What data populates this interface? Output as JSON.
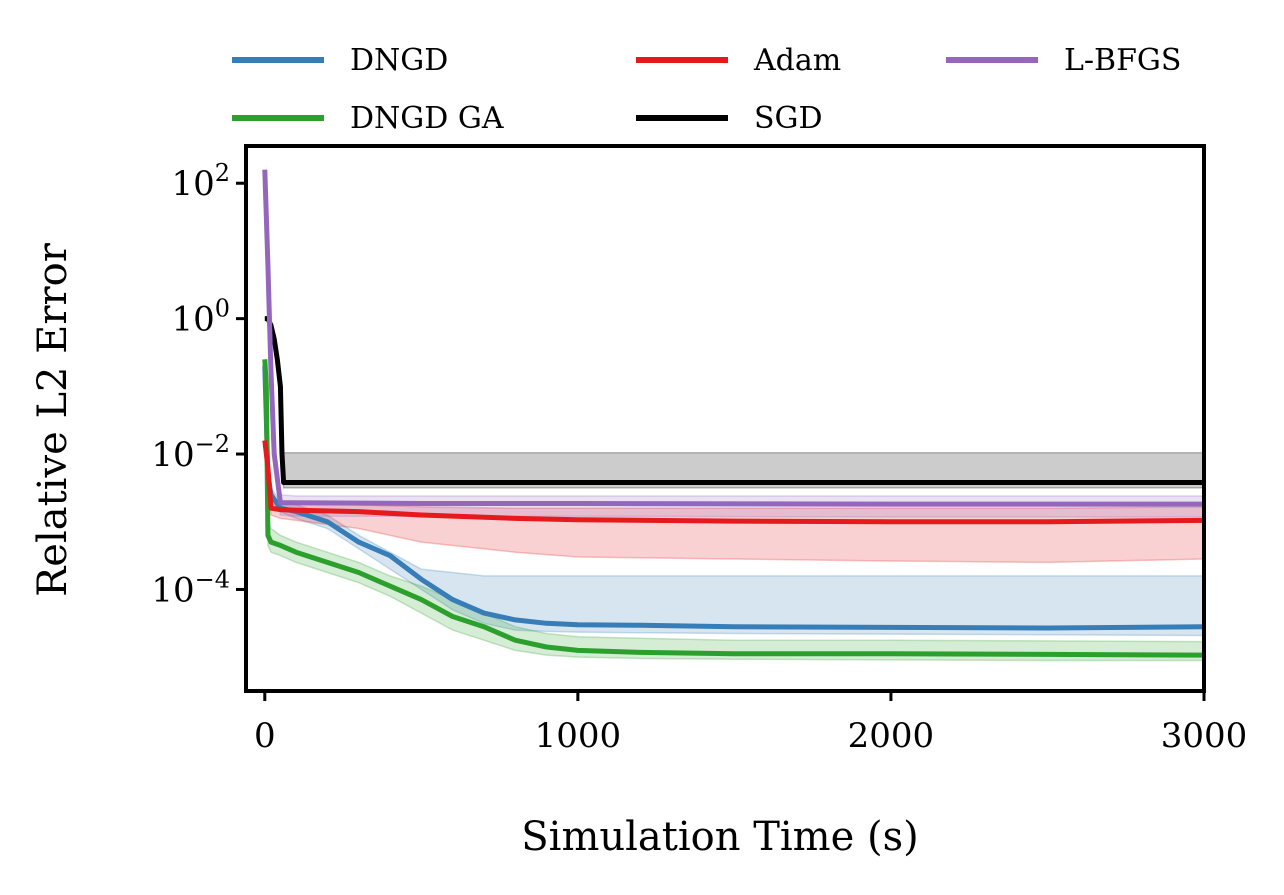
{
  "chart_data": {
    "type": "line",
    "xlabel": "Simulation Time (s)",
    "ylabel": "Relative L2 Error",
    "yscale": "log",
    "xlim": [
      -60,
      3000
    ],
    "ylim_log10": [
      -5.5,
      2.55
    ],
    "x_ticks": [
      {
        "value": 0,
        "label": "0"
      },
      {
        "value": 1000,
        "label": "1000"
      },
      {
        "value": 2000,
        "label": "2000"
      },
      {
        "value": 3000,
        "label": "3000"
      }
    ],
    "y_ticks": [
      {
        "log10": 2,
        "base": "10",
        "exp": "2"
      },
      {
        "log10": 0,
        "base": "10",
        "exp": "0"
      },
      {
        "log10": -2,
        "base": "10",
        "exp": "−2"
      },
      {
        "log10": -4,
        "base": "10",
        "exp": "−4"
      }
    ],
    "grid": false,
    "legend": {
      "placement": "top, above plot",
      "columns": 3
    },
    "series": [
      {
        "name": "DNGD",
        "color": "#377eb8",
        "x": [
          0,
          10,
          20,
          50,
          100,
          200,
          300,
          400,
          500,
          600,
          700,
          800,
          900,
          1000,
          1200,
          1500,
          2000,
          2500,
          3000
        ],
        "log10_y": [
          -0.7,
          -2.3,
          -2.6,
          -2.8,
          -2.85,
          -3.0,
          -3.3,
          -3.5,
          -3.85,
          -4.15,
          -4.35,
          -4.45,
          -4.5,
          -4.52,
          -4.53,
          -4.55,
          -4.56,
          -4.57,
          -4.55
        ],
        "band_upper": [
          -0.7,
          -2.2,
          -2.5,
          -2.7,
          -2.75,
          -2.9,
          -3.2,
          -3.45,
          -3.7,
          -3.75,
          -3.8,
          -3.8,
          -3.8,
          -3.8,
          -3.8,
          -3.8,
          -3.8,
          -3.8,
          -3.8
        ],
        "band_lower": [
          -0.7,
          -2.4,
          -2.7,
          -2.85,
          -2.95,
          -3.1,
          -3.4,
          -3.7,
          -4.0,
          -4.3,
          -4.5,
          -4.6,
          -4.62,
          -4.63,
          -4.64,
          -4.65,
          -4.66,
          -4.67,
          -4.68
        ]
      },
      {
        "name": "DNGD GA",
        "color": "#2ca02c",
        "x": [
          0,
          5,
          10,
          20,
          50,
          100,
          200,
          300,
          400,
          500,
          600,
          700,
          800,
          900,
          1000,
          1200,
          1500,
          2000,
          2500,
          3000
        ],
        "log10_y": [
          -0.6,
          -1.0,
          -3.2,
          -3.3,
          -3.35,
          -3.45,
          -3.6,
          -3.75,
          -3.95,
          -4.15,
          -4.4,
          -4.55,
          -4.75,
          -4.85,
          -4.9,
          -4.93,
          -4.95,
          -4.95,
          -4.96,
          -4.97
        ],
        "band_upper": [
          -0.6,
          -1.0,
          -3.0,
          -3.1,
          -3.2,
          -3.3,
          -3.45,
          -3.6,
          -3.8,
          -3.95,
          -4.15,
          -4.35,
          -4.55,
          -4.65,
          -4.7,
          -4.72,
          -4.75,
          -4.75,
          -4.76,
          -4.77
        ],
        "band_lower": [
          -0.6,
          -1.0,
          -3.35,
          -3.45,
          -3.5,
          -3.6,
          -3.75,
          -3.9,
          -4.1,
          -4.35,
          -4.6,
          -4.75,
          -4.9,
          -4.97,
          -5.0,
          -5.02,
          -5.03,
          -5.04,
          -5.05,
          -5.05
        ]
      },
      {
        "name": "Adam",
        "color": "#e41a1c",
        "x": [
          0,
          10,
          20,
          50,
          100,
          300,
          500,
          800,
          1000,
          1500,
          2000,
          2500,
          3000
        ],
        "log10_y": [
          -1.8,
          -2.2,
          -2.8,
          -2.82,
          -2.83,
          -2.85,
          -2.9,
          -2.95,
          -2.97,
          -2.99,
          -3.0,
          -3.0,
          -2.98
        ],
        "band_upper": [
          -1.8,
          -2.1,
          -2.7,
          -2.72,
          -2.73,
          -2.75,
          -2.78,
          -2.8,
          -2.8,
          -2.8,
          -2.8,
          -2.8,
          -2.78
        ],
        "band_lower": [
          -1.8,
          -2.3,
          -2.9,
          -2.95,
          -2.98,
          -3.1,
          -3.3,
          -3.45,
          -3.52,
          -3.55,
          -3.58,
          -3.6,
          -3.55
        ]
      },
      {
        "name": "SGD",
        "color": "#000000",
        "x": [
          0,
          10,
          20,
          30,
          40,
          50,
          55,
          60,
          70,
          100,
          500,
          1000,
          2000,
          3000
        ],
        "log10_y": [
          0.0,
          0.0,
          -0.1,
          -0.3,
          -0.6,
          -1.0,
          -2.0,
          -2.42,
          -2.42,
          -2.42,
          -2.42,
          -2.42,
          -2.42,
          -2.42
        ],
        "band_upper": [
          0.0,
          0.0,
          -0.1,
          -0.3,
          -0.6,
          -1.0,
          -1.9,
          -1.98,
          -1.98,
          -1.98,
          -1.98,
          -1.98,
          -1.98,
          -1.98
        ],
        "band_lower": [
          0.0,
          0.0,
          -0.1,
          -0.3,
          -0.6,
          -1.0,
          -2.1,
          -2.5,
          -2.5,
          -2.5,
          -2.5,
          -2.5,
          -2.5,
          -2.5
        ]
      },
      {
        "name": "L-BFGS",
        "color": "#9467bd",
        "x": [
          0,
          10,
          20,
          30,
          50,
          100,
          500,
          1000,
          2000,
          3000
        ],
        "log10_y": [
          2.2,
          0.8,
          -0.8,
          -2.0,
          -2.72,
          -2.72,
          -2.73,
          -2.73,
          -2.74,
          -2.74
        ],
        "band_upper": [
          2.2,
          0.8,
          -0.8,
          -2.0,
          -2.6,
          -2.62,
          -2.62,
          -2.62,
          -2.62,
          -2.62
        ],
        "band_lower": [
          2.2,
          0.8,
          -0.8,
          -2.0,
          -2.9,
          -2.92,
          -2.92,
          -2.92,
          -2.93,
          -2.93
        ]
      }
    ]
  }
}
